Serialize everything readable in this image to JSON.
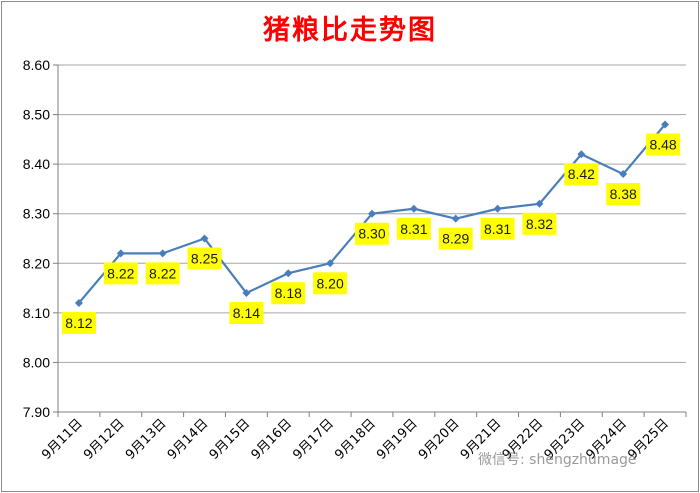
{
  "chart_data": {
    "type": "line",
    "title": "猪粮比走势图",
    "categories": [
      "9月11日",
      "9月12日",
      "9月13日",
      "9月14日",
      "9月15日",
      "9月16日",
      "9月17日",
      "9月18日",
      "9月19日",
      "9月20日",
      "9月21日",
      "9月22日",
      "9月23日",
      "9月24日",
      "9月25日"
    ],
    "series": [
      {
        "values": [
          8.12,
          8.22,
          8.22,
          8.25,
          8.14,
          8.18,
          8.2,
          8.3,
          8.31,
          8.29,
          8.31,
          8.32,
          8.42,
          8.38,
          8.48
        ]
      }
    ],
    "data_labels": [
      "8.12",
      "8.22",
      "8.22",
      "8.25",
      "8.14",
      "8.18",
      "8.20",
      "8.30",
      "8.31",
      "8.29",
      "8.31",
      "8.32",
      "8.42",
      "8.38",
      "8.48"
    ],
    "ylim": [
      7.9,
      8.6
    ],
    "yticks": [
      "7.90",
      "8.00",
      "8.10",
      "8.20",
      "8.30",
      "8.40",
      "8.50",
      "8.60"
    ],
    "grid": true,
    "xlabel": "",
    "ylabel": "",
    "colors": {
      "line": "#4a7ebb",
      "label_bg": "#ffff00",
      "title": "#ff0000",
      "grid": "#a6a6a6"
    }
  },
  "watermark": "微信号: shengzhumage"
}
